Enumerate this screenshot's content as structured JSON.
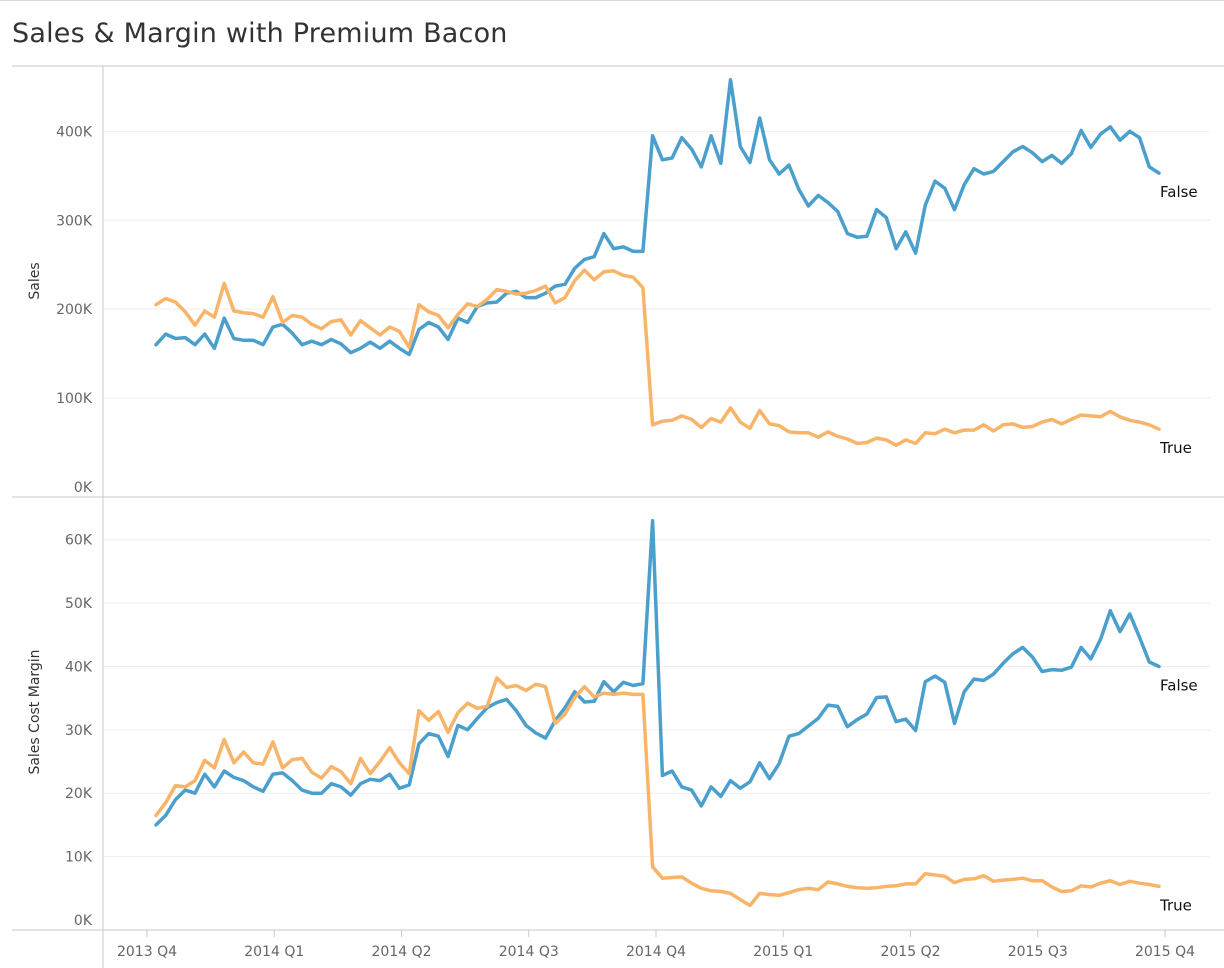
{
  "title": "Sales & Margin with Premium Bacon",
  "colors": {
    "False": "#4a9fcd",
    "True": "#f8b468",
    "grid": "#eeeeee",
    "frame": "#c8c8c8"
  },
  "x_ticks": [
    "2013 Q4",
    "2014 Q1",
    "2014 Q2",
    "2014 Q3",
    "2014 Q4",
    "2015 Q1",
    "2015 Q2",
    "2015 Q3",
    "2015 Q4"
  ],
  "chart_data": [
    {
      "type": "line",
      "title": "",
      "ylabel": "Sales",
      "ylim": [
        0,
        460000
      ],
      "y_ticks": [
        {
          "value": 0,
          "label": "0K"
        },
        {
          "value": 100000,
          "label": "100K"
        },
        {
          "value": 200000,
          "label": "200K"
        },
        {
          "value": 300000,
          "label": "300K"
        },
        {
          "value": 400000,
          "label": "400K"
        }
      ],
      "x_range": [
        0,
        103
      ],
      "series": [
        {
          "name": "False",
          "values": [
            160000,
            172000,
            167000,
            168000,
            160000,
            172000,
            156000,
            190000,
            167000,
            165000,
            165000,
            160000,
            180000,
            183000,
            173000,
            160000,
            164000,
            160000,
            166000,
            161000,
            151000,
            156000,
            163000,
            156000,
            164000,
            156000,
            149000,
            177000,
            185000,
            180000,
            166000,
            190000,
            185000,
            203000,
            207000,
            208000,
            218000,
            220000,
            213000,
            213000,
            218000,
            226000,
            228000,
            246000,
            256000,
            259000,
            285000,
            268000,
            270000,
            265000,
            265000,
            395000,
            368000,
            370000,
            393000,
            380000,
            360000,
            395000,
            364000,
            458000,
            383000,
            365000,
            415000,
            368000,
            352000,
            362000,
            335000,
            316000,
            328000,
            320000,
            310000,
            285000,
            281000,
            282000,
            312000,
            303000,
            268000,
            287000,
            263000,
            317000,
            344000,
            336000,
            312000,
            340000,
            358000,
            352000,
            355000,
            366000,
            377000,
            383000,
            376000,
            366000,
            373000,
            364000,
            375000,
            401000,
            382000,
            397000,
            405000,
            390000,
            400000,
            393000,
            360000,
            353000
          ],
          "end_label": "False"
        },
        {
          "name": "True",
          "values": [
            205000,
            212000,
            208000,
            197000,
            182000,
            198000,
            191000,
            229000,
            198000,
            196000,
            195000,
            191000,
            214000,
            185000,
            193000,
            191000,
            183000,
            178000,
            186000,
            188000,
            171000,
            187000,
            179000,
            171000,
            180000,
            175000,
            157000,
            205000,
            197000,
            193000,
            179000,
            194000,
            206000,
            203000,
            211000,
            222000,
            220000,
            217000,
            218000,
            221000,
            226000,
            207000,
            213000,
            232000,
            244000,
            233000,
            242000,
            243000,
            238000,
            236000,
            224000,
            70000,
            74000,
            75000,
            80000,
            76000,
            67000,
            77000,
            73000,
            89000,
            73000,
            66000,
            86000,
            71000,
            69000,
            62000,
            61000,
            61000,
            56000,
            62000,
            57000,
            54000,
            49000,
            50000,
            55000,
            53000,
            47000,
            53000,
            49000,
            61000,
            60000,
            65000,
            61000,
            64000,
            64000,
            70000,
            63000,
            70000,
            71000,
            67000,
            68000,
            73000,
            76000,
            71000,
            76000,
            81000,
            80000,
            79000,
            85000,
            79000,
            75000,
            73000,
            70000,
            65000
          ],
          "end_label": "True"
        }
      ]
    },
    {
      "type": "line",
      "title": "",
      "ylabel": "Sales Cost Margin",
      "ylim": [
        0,
        65000
      ],
      "y_ticks": [
        {
          "value": 0,
          "label": "0K"
        },
        {
          "value": 10000,
          "label": "10K"
        },
        {
          "value": 20000,
          "label": "20K"
        },
        {
          "value": 30000,
          "label": "30K"
        },
        {
          "value": 40000,
          "label": "40K"
        },
        {
          "value": 50000,
          "label": "50K"
        },
        {
          "value": 60000,
          "label": "60K"
        }
      ],
      "x_range": [
        0,
        103
      ],
      "series": [
        {
          "name": "False",
          "values": [
            15000,
            16500,
            19000,
            20500,
            20000,
            23000,
            21000,
            23500,
            22500,
            22000,
            21000,
            20300,
            23000,
            23200,
            22000,
            20500,
            20000,
            20000,
            21500,
            21000,
            19700,
            21500,
            22200,
            22000,
            23000,
            20800,
            21300,
            27800,
            29400,
            29000,
            25800,
            30700,
            30000,
            31800,
            33500,
            34300,
            34800,
            33000,
            30700,
            29500,
            28700,
            31500,
            33500,
            36000,
            34400,
            34500,
            37600,
            36000,
            37500,
            37000,
            37300,
            63000,
            22800,
            23500,
            21000,
            20500,
            18000,
            21000,
            19500,
            22000,
            20800,
            21800,
            24800,
            22300,
            24700,
            29000,
            29400,
            30600,
            31800,
            33900,
            33700,
            30500,
            31600,
            32500,
            35100,
            35200,
            31300,
            31700,
            29900,
            37600,
            38500,
            37500,
            31000,
            36000,
            38000,
            37800,
            38800,
            40500,
            42000,
            43000,
            41500,
            39200,
            39500,
            39400,
            39900,
            43000,
            41200,
            44300,
            48800,
            45500,
            48300,
            44600,
            40700,
            40000
          ],
          "end_label": "False"
        },
        {
          "name": "True",
          "values": [
            16500,
            18500,
            21200,
            21000,
            22000,
            25200,
            24000,
            28500,
            24800,
            26500,
            24800,
            24600,
            28100,
            24000,
            25300,
            25500,
            23300,
            22400,
            24200,
            23400,
            21500,
            25500,
            23100,
            25000,
            27200,
            24800,
            23100,
            33000,
            31500,
            32900,
            29600,
            32700,
            34200,
            33400,
            33700,
            38200,
            36700,
            37000,
            36200,
            37200,
            36800,
            31000,
            32500,
            35100,
            36800,
            35200,
            35800,
            35600,
            35800,
            35600,
            35600,
            8400,
            6600,
            6700,
            6800,
            5800,
            5000,
            4600,
            4500,
            4200,
            3200,
            2300,
            4200,
            4000,
            3900,
            4300,
            4800,
            5000,
            4800,
            6000,
            5700,
            5300,
            5100,
            5000,
            5100,
            5300,
            5400,
            5700,
            5700,
            7300,
            7100,
            6900,
            5900,
            6400,
            6500,
            7000,
            6100,
            6300,
            6400,
            6600,
            6200,
            6200,
            5200,
            4500,
            4600,
            5400,
            5200,
            5800,
            6200,
            5600,
            6100,
            5800,
            5600,
            5300
          ],
          "end_label": "True"
        }
      ]
    }
  ]
}
